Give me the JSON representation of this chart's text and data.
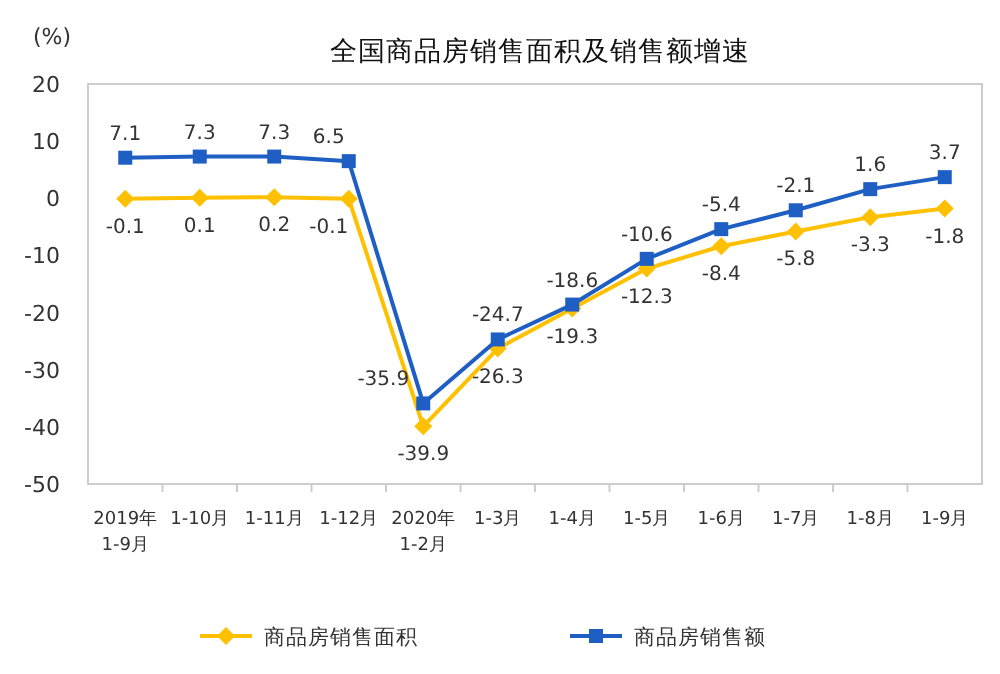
{
  "chart_data": {
    "type": "line",
    "title": "全国商品房销售面积及销售额增速",
    "ylabel": "(%)",
    "categories": [
      "2019年\n1-9月",
      "1-10月",
      "1-11月",
      "1-12月",
      "2020年\n1-2月",
      "1-3月",
      "1-4月",
      "1-5月",
      "1-6月",
      "1-7月",
      "1-8月",
      "1-9月"
    ],
    "series": [
      {
        "name": "商品房销售面积",
        "color": "#ffc000",
        "marker": "diamond",
        "values": [
          -0.1,
          0.1,
          0.2,
          -0.1,
          -39.9,
          -26.3,
          -19.3,
          -12.3,
          -8.4,
          -5.8,
          -3.3,
          -1.8
        ]
      },
      {
        "name": "商品房销售额",
        "color": "#1f5fc4",
        "marker": "square",
        "values": [
          7.1,
          7.3,
          7.3,
          6.5,
          -35.9,
          -24.7,
          -18.6,
          -10.6,
          -5.4,
          -2.1,
          1.6,
          3.7
        ]
      }
    ],
    "ylim": [
      -50,
      20
    ],
    "yticks": [
      -50,
      -40,
      -30,
      -20,
      -10,
      0,
      10,
      20
    ],
    "grid": false,
    "legend": "bottom",
    "data_labels": true
  }
}
